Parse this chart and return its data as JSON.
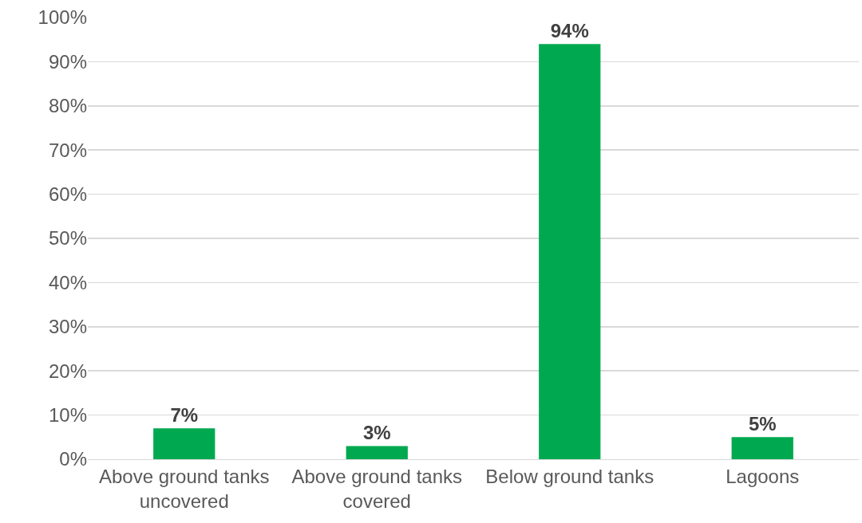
{
  "chart_data": {
    "type": "bar",
    "categories": [
      "Above ground tanks uncovered",
      "Above ground tanks covered",
      "Below ground tanks",
      "Lagoons"
    ],
    "values": [
      7,
      3,
      94,
      5
    ],
    "value_labels": [
      "7%",
      "3%",
      "94%",
      "5%"
    ],
    "color": "#00a94f",
    "ylim": [
      0,
      100
    ],
    "yticks": [
      {
        "value": 0,
        "label": "0%"
      },
      {
        "value": 10,
        "label": "10%"
      },
      {
        "value": 20,
        "label": "20%"
      },
      {
        "value": 30,
        "label": "30%"
      },
      {
        "value": 40,
        "label": "40%"
      },
      {
        "value": 50,
        "label": "50%"
      },
      {
        "value": 60,
        "label": "60%"
      },
      {
        "value": 70,
        "label": "70%"
      },
      {
        "value": 80,
        "label": "80%"
      },
      {
        "value": 90,
        "label": "90%"
      },
      {
        "value": 100,
        "label": "100%"
      }
    ],
    "grid": "y"
  }
}
